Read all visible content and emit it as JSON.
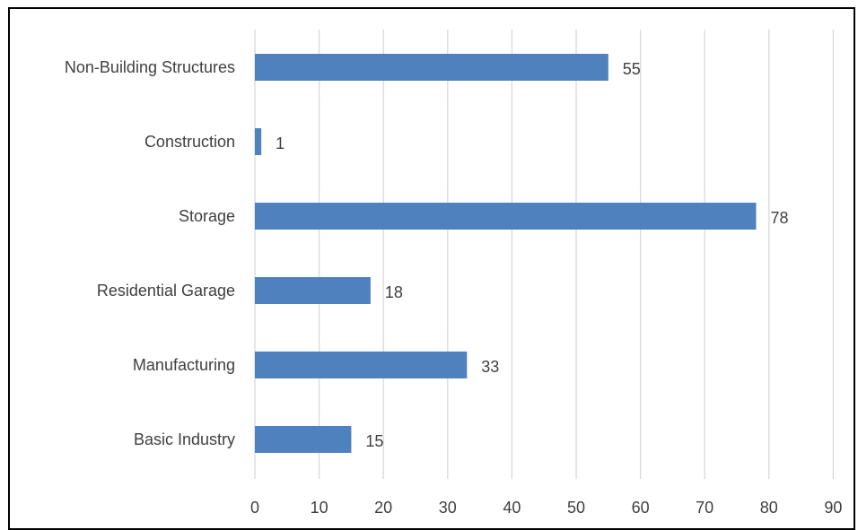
{
  "chart_data": {
    "type": "bar",
    "orientation": "horizontal",
    "categories": [
      "Non-Building Structures",
      "Construction",
      "Storage",
      "Residential Garage",
      "Manufacturing",
      "Basic Industry"
    ],
    "values": [
      55,
      1,
      78,
      18,
      33,
      15
    ],
    "title": "",
    "xlabel": "",
    "ylabel": "",
    "xlim": [
      0,
      90
    ],
    "x_ticks": [
      0,
      10,
      20,
      30,
      40,
      50,
      60,
      70,
      80,
      90
    ],
    "vertical_grid": true,
    "legend": "none",
    "data_labels": true,
    "colors": {
      "bar": "#4e81bd",
      "grid": "#d9d9d9",
      "text": "#404040",
      "frame": "#000000"
    }
  }
}
